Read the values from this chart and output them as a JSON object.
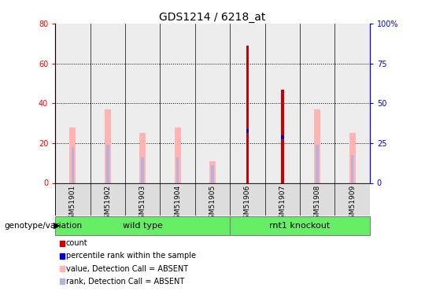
{
  "title": "GDS1214 / 6218_at",
  "samples": [
    "GSM51901",
    "GSM51902",
    "GSM51903",
    "GSM51904",
    "GSM51905",
    "GSM51906",
    "GSM51907",
    "GSM51908",
    "GSM51909"
  ],
  "count_values": [
    0,
    0,
    0,
    0,
    0,
    69,
    47,
    0,
    0
  ],
  "percentile_rank": [
    0,
    0,
    0,
    0,
    0,
    26,
    23,
    0,
    0
  ],
  "value_absent": [
    28,
    37,
    25,
    28,
    11,
    0,
    0,
    37,
    25
  ],
  "rank_absent": [
    18,
    19,
    13,
    13,
    9,
    0,
    0,
    19,
    14
  ],
  "ylim_left": [
    0,
    80
  ],
  "ylim_right": [
    0,
    100
  ],
  "yticks_left": [
    0,
    20,
    40,
    60,
    80
  ],
  "yticks_right": [
    0,
    25,
    50,
    75,
    100
  ],
  "ytick_labels_left": [
    "0",
    "20",
    "40",
    "60",
    "80"
  ],
  "ytick_labels_right": [
    "0",
    "25",
    "50",
    "75",
    "100%"
  ],
  "color_count": "#cc0000",
  "color_percentile": "#0000cc",
  "color_value_absent": "#ffb3b3",
  "color_rank_absent": "#b3b3dd",
  "color_col_bg": "#dddddd",
  "group_label": "genotype/variation",
  "group1_name": "wild type",
  "group2_name": "rnt1 knockout",
  "group1_count": 5,
  "group2_count": 4,
  "group_color": "#66ee66",
  "legend_items": [
    {
      "label": "count",
      "color": "#cc0000"
    },
    {
      "label": "percentile rank within the sample",
      "color": "#0000cc"
    },
    {
      "label": "value, Detection Call = ABSENT",
      "color": "#ffb3b3"
    },
    {
      "label": "rank, Detection Call = ABSENT",
      "color": "#b3b3dd"
    }
  ]
}
